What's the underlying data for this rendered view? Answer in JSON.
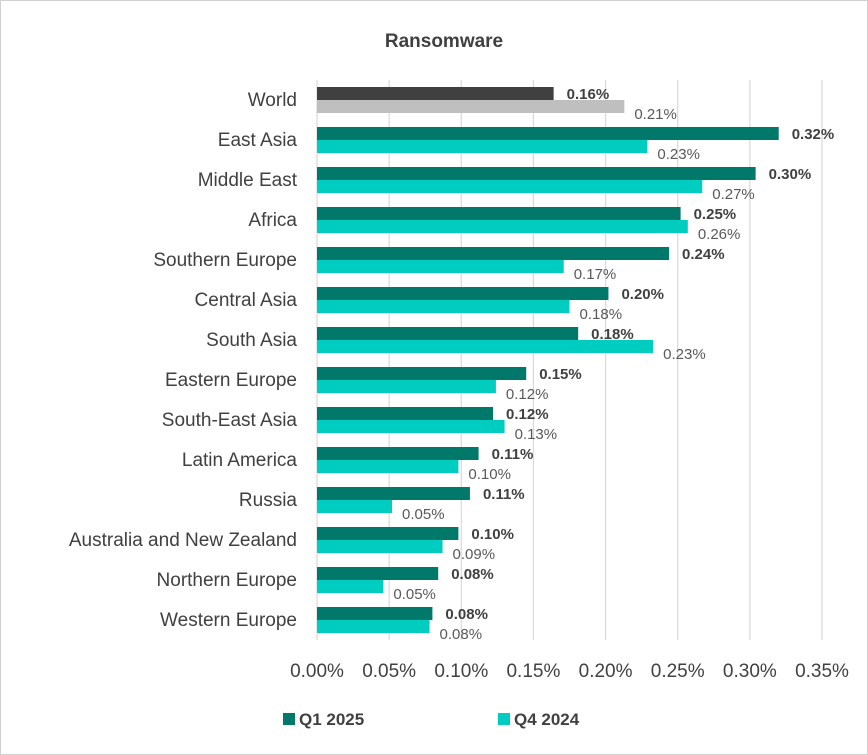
{
  "chart_data": {
    "type": "bar",
    "orientation": "horizontal",
    "title": "Ransomware",
    "categories": [
      "World",
      "East Asia",
      "Middle East",
      "Africa",
      "Southern Europe",
      "Central Asia",
      "South Asia",
      "Eastern Europe",
      "South-East Asia",
      "Latin America",
      "Russia",
      "Australia and New Zealand",
      "Northern Europe",
      "Western Europe"
    ],
    "series": [
      {
        "name": "Q1 2025",
        "color": "#00796b",
        "world_color": "#404040",
        "values": [
          0.164,
          0.32,
          0.304,
          0.252,
          0.244,
          0.202,
          0.181,
          0.145,
          0.122,
          0.112,
          0.106,
          0.098,
          0.084,
          0.08
        ],
        "labels": [
          "0.16%",
          "0.32%",
          "0.30%",
          "0.25%",
          "0.24%",
          "0.20%",
          "0.18%",
          "0.15%",
          "0.12%",
          "0.11%",
          "0.11%",
          "0.10%",
          "0.08%",
          "0.08%"
        ]
      },
      {
        "name": "Q4 2024",
        "color": "#00ccc0",
        "world_color": "#bfbfbf",
        "values": [
          0.213,
          0.229,
          0.267,
          0.257,
          0.171,
          0.175,
          0.233,
          0.124,
          0.13,
          0.098,
          0.052,
          0.087,
          0.046,
          0.078
        ],
        "labels": [
          "0.21%",
          "0.23%",
          "0.27%",
          "0.26%",
          "0.17%",
          "0.18%",
          "0.23%",
          "0.12%",
          "0.13%",
          "0.10%",
          "0.05%",
          "0.09%",
          "0.05%",
          "0.08%"
        ]
      }
    ],
    "xlim": [
      0,
      0.35
    ],
    "x_ticks": [
      0,
      0.05,
      0.1,
      0.15,
      0.2,
      0.25,
      0.3,
      0.35
    ],
    "x_tick_labels": [
      "0.00%",
      "0.05%",
      "0.10%",
      "0.15%",
      "0.20%",
      "0.25%",
      "0.30%",
      "0.35%"
    ],
    "grid": "vertical",
    "legend_position": "bottom"
  }
}
